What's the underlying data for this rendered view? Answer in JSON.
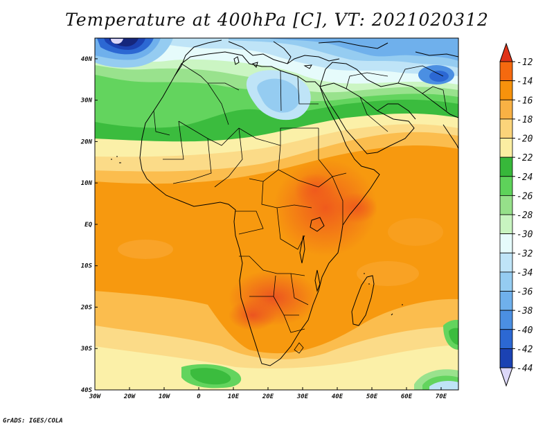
{
  "title": "Temperature at 400hPa [C], VT: 2021020312",
  "credit": "GrADS: IGES/COLA",
  "map": {
    "lon_range": [
      -30,
      75
    ],
    "lat_range": [
      -40,
      45
    ],
    "lon_ticks": [
      {
        "value": -30,
        "label": "30W"
      },
      {
        "value": -20,
        "label": "20W"
      },
      {
        "value": -10,
        "label": "10W"
      },
      {
        "value": 0,
        "label": "0"
      },
      {
        "value": 10,
        "label": "10E"
      },
      {
        "value": 20,
        "label": "20E"
      },
      {
        "value": 30,
        "label": "30E"
      },
      {
        "value": 40,
        "label": "40E"
      },
      {
        "value": 50,
        "label": "50E"
      },
      {
        "value": 60,
        "label": "60E"
      },
      {
        "value": 70,
        "label": "70E"
      }
    ],
    "lat_ticks": [
      {
        "value": 40,
        "label": "40N"
      },
      {
        "value": 30,
        "label": "30N"
      },
      {
        "value": 20,
        "label": "20N"
      },
      {
        "value": 10,
        "label": "10N"
      },
      {
        "value": 0,
        "label": "EQ"
      },
      {
        "value": -10,
        "label": "10S"
      },
      {
        "value": -20,
        "label": "20S"
      },
      {
        "value": -30,
        "label": "30S"
      },
      {
        "value": -40,
        "label": "40S"
      }
    ]
  },
  "colorbar": {
    "levels": [
      "-12",
      "-14",
      "-16",
      "-18",
      "-20",
      "-22",
      "-24",
      "-26",
      "-28",
      "-30",
      "-32",
      "-34",
      "-36",
      "-38",
      "-40",
      "-42",
      "-44"
    ],
    "colors": [
      "#e8471f",
      "#f5690f",
      "#f7920c",
      "#f9b144",
      "#fbd47a",
      "#fbeea2",
      "#37b83a",
      "#5ed25a",
      "#96e08a",
      "#c8f4c0",
      "#e6fbfb",
      "#bfe4f7",
      "#95ccf1",
      "#6fb0ec",
      "#4b8fe2",
      "#2c68d3",
      "#1b42b3",
      "#15267c"
    ],
    "top_color": "#e03318",
    "bottom_color": "#dcd8f8"
  }
}
